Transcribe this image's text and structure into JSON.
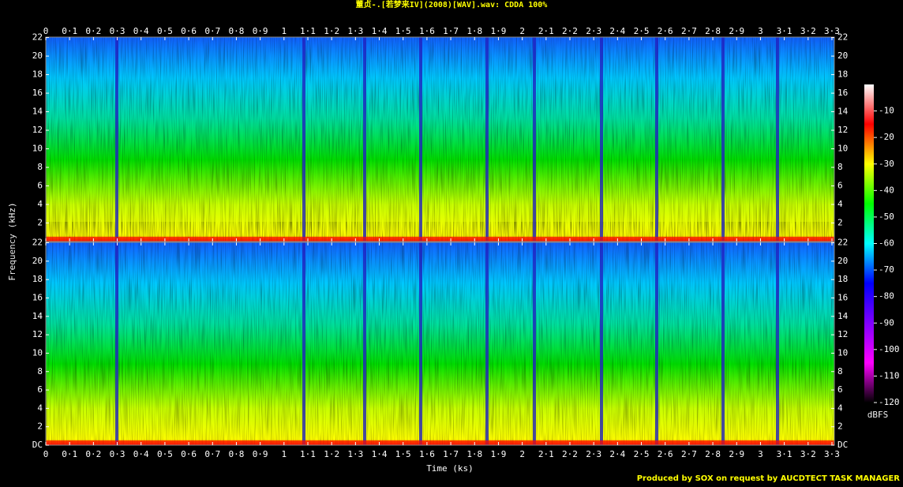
{
  "chart_data": {
    "type": "spectrogram",
    "title": "董贞-.[若梦来IV](2008)[WAV].wav: CDDA 100%",
    "x_label": "Time (ks)",
    "y_label": "Frequency (kHz)",
    "xlim": [
      0,
      3.31
    ],
    "xticks": [
      0,
      {
        "value": 0.1,
        "label": "0·1"
      },
      {
        "value": 0.2,
        "label": "0·2"
      },
      {
        "value": 0.3,
        "label": "0·3"
      },
      {
        "value": 0.4,
        "label": "0·4"
      },
      {
        "value": 0.5,
        "label": "0·5"
      },
      {
        "value": 0.6,
        "label": "0·6"
      },
      {
        "value": 0.7,
        "label": "0·7"
      },
      {
        "value": 0.8,
        "label": "0·8"
      },
      {
        "value": 0.9,
        "label": "0·9"
      },
      1,
      {
        "value": 1.1,
        "label": "1·1"
      },
      {
        "value": 1.2,
        "label": "1·2"
      },
      {
        "value": 1.3,
        "label": "1·3"
      },
      {
        "value": 1.4,
        "label": "1·4"
      },
      {
        "value": 1.5,
        "label": "1·5"
      },
      {
        "value": 1.6,
        "label": "1·6"
      },
      {
        "value": 1.7,
        "label": "1·7"
      },
      {
        "value": 1.8,
        "label": "1·8"
      },
      {
        "value": 1.9,
        "label": "1·9"
      },
      2,
      {
        "value": 2.1,
        "label": "2·1"
      },
      {
        "value": 2.2,
        "label": "2·2"
      },
      {
        "value": 2.3,
        "label": "2·3"
      },
      {
        "value": 2.4,
        "label": "2·4"
      },
      {
        "value": 2.5,
        "label": "2·5"
      },
      {
        "value": 2.6,
        "label": "2·6"
      },
      {
        "value": 2.7,
        "label": "2·7"
      },
      {
        "value": 2.8,
        "label": "2·8"
      },
      {
        "value": 2.9,
        "label": "2·9"
      },
      3,
      {
        "value": 3.1,
        "label": "3·1"
      },
      {
        "value": 3.2,
        "label": "3·2"
      },
      {
        "value": 3.3,
        "label": "3·3"
      }
    ],
    "ylim": [
      0,
      22.05
    ],
    "channels": [
      {
        "yticks": [
          2,
          4,
          6,
          8,
          10,
          12,
          14,
          16,
          18,
          20,
          22
        ]
      },
      {
        "yticks": [
          {
            "value": 0,
            "label": "DC"
          },
          2,
          4,
          6,
          8,
          10,
          12,
          14,
          16,
          18,
          20,
          22
        ]
      }
    ],
    "colorbar": {
      "label": "dBFS",
      "lim": [
        -120,
        0
      ],
      "ticks": [
        -10,
        -20,
        -30,
        -40,
        -50,
        -60,
        -70,
        -80,
        -90,
        -100,
        -110,
        -120
      ],
      "colors": [
        "#ffffff",
        "#ff0000",
        "#ffff00",
        "#00ff00",
        "#00ffff",
        "#0000ff",
        "#8000ff",
        "#ff00ff",
        "#000000"
      ]
    },
    "footer": "Produced by SOX on request by AUCDTECT TASK MANAGER"
  }
}
